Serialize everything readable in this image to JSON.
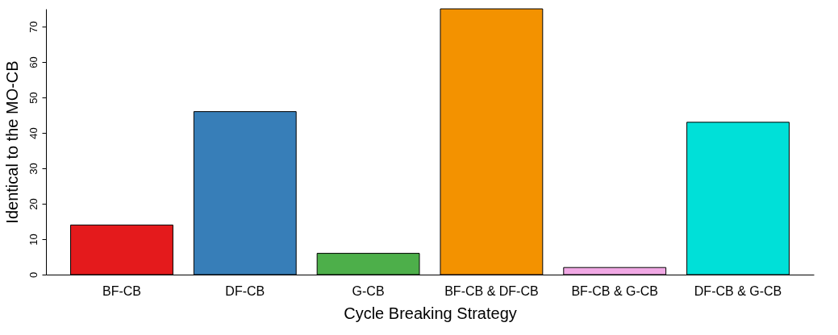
{
  "chart_data": {
    "type": "bar",
    "xlabel": "Cycle Breaking Strategy",
    "ylabel": "Identical to the MO-CB",
    "categories": [
      "BF-CB",
      "DF-CB",
      "G-CB",
      "BF-CB & DF-CB",
      "BF-CB & G-CB",
      "DF-CB & G-CB"
    ],
    "values": [
      14,
      46,
      6,
      75,
      2,
      43
    ],
    "colors": [
      "#e41a1c",
      "#377eb8",
      "#4daf4a",
      "#f39200",
      "#f0a8e4",
      "#00e0d8"
    ],
    "ylim": [
      0,
      75
    ],
    "yticks": [
      0,
      10,
      20,
      30,
      40,
      50,
      60,
      70
    ],
    "grid": false
  }
}
